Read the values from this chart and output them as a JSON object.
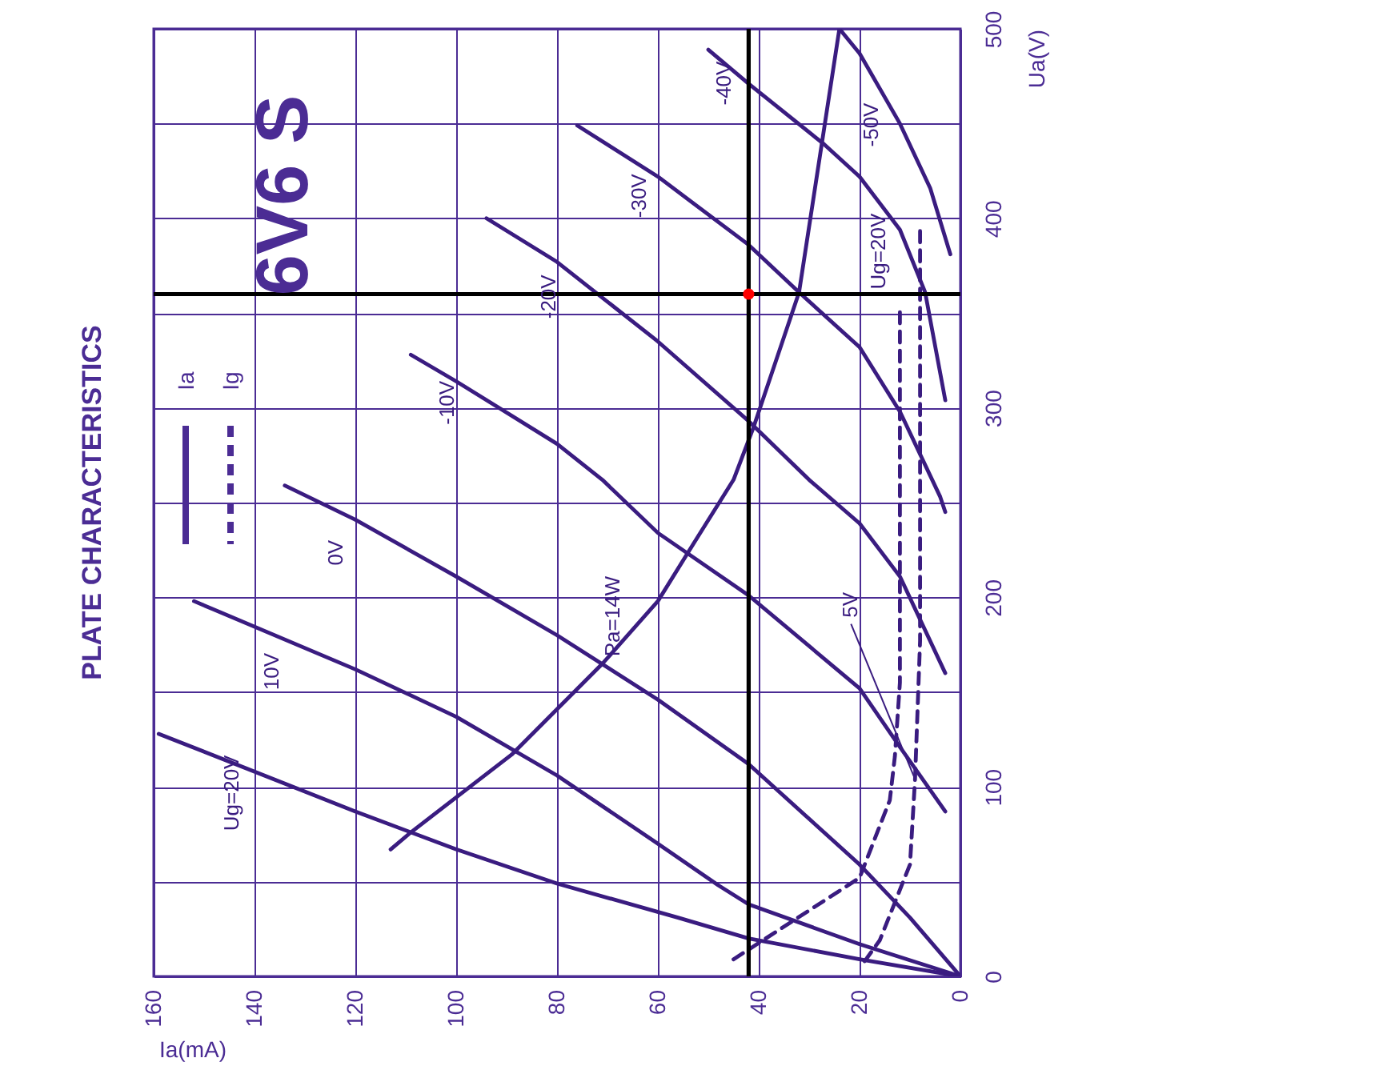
{
  "chart_data": {
    "type": "line",
    "title": "PLATE CHARACTERISTICS",
    "subtitle": "6V6 S",
    "xlabel": "Ia(mA)",
    "ylabel": "Ua(V)",
    "annotations": [
      "Ia",
      "Ig"
    ],
    "xlim": [
      160,
      0
    ],
    "ylim": [
      0,
      500
    ],
    "xticks": [
      160,
      140,
      120,
      100,
      80,
      60,
      40,
      20,
      0
    ],
    "yticks": [
      0,
      {
        "value": 50,
        "label": null
      },
      100,
      {
        "value": 150,
        "label": null
      },
      200,
      {
        "value": 250,
        "label": null
      },
      300,
      {
        "value": 350,
        "label": null
      },
      400,
      {
        "value": 450,
        "label": null
      },
      500
    ],
    "grid": true,
    "ref_lines": [
      {
        "axis": "x",
        "value": 42,
        "color": "#000000"
      },
      {
        "axis": "y",
        "value": 360,
        "color": "#000000"
      }
    ],
    "series": [
      {
        "name": "Ug=20V",
        "color": "#3a1c80",
        "x": [
          0,
          20,
          42,
          56,
          80,
          100,
          120,
          159
        ],
        "values": [
          0,
          9,
          20,
          31,
          49,
          67,
          87,
          128
        ]
      },
      {
        "name": "10V",
        "color": "#3a1c80",
        "x": [
          0,
          20,
          42,
          48,
          60,
          80,
          100,
          120,
          152
        ],
        "values": [
          0,
          17,
          38,
          48,
          70,
          106,
          137,
          162,
          198
        ]
      },
      {
        "name": "0V",
        "color": "#3a1c80",
        "x": [
          0,
          10,
          20,
          42,
          60,
          80,
          100,
          120,
          134
        ],
        "values": [
          0,
          31,
          59,
          112,
          146,
          180,
          211,
          241,
          259
        ]
      },
      {
        "name": "-10V",
        "color": "#3a1c80",
        "x": [
          3,
          12,
          20,
          42,
          60,
          71,
          80,
          100,
          109
        ],
        "values": [
          87,
          121,
          152,
          201,
          234,
          262,
          281,
          314,
          328
        ]
      },
      {
        "name": "-20V",
        "color": "#3a1c80",
        "x": [
          3,
          12,
          20,
          30,
          42,
          60,
          80,
          94
        ],
        "values": [
          160,
          211,
          239,
          262,
          293,
          335,
          377,
          400
        ]
      },
      {
        "name": "-30V",
        "color": "#3a1c80",
        "x": [
          3,
          4,
          12,
          20,
          32,
          42,
          60,
          76
        ],
        "values": [
          245,
          253,
          298,
          332,
          361,
          386,
          422,
          449
        ]
      },
      {
        "name": "-40V",
        "color": "#3a1c80",
        "x": [
          3,
          7,
          12,
          20,
          27,
          42,
          50
        ],
        "values": [
          304,
          361,
          394,
          422,
          439,
          471,
          489
        ]
      },
      {
        "name": "-50V",
        "color": "#3a1c80",
        "x": [
          2,
          6,
          12,
          20,
          24
        ],
        "values": [
          381,
          416,
          450,
          487,
          500
        ]
      },
      {
        "name": "Pa=14W",
        "color": "#3a1c80",
        "x": [
          113,
          109,
          89,
          71,
          60,
          53,
          45,
          41,
          32,
          24
        ],
        "values": [
          67,
          76,
          117,
          165,
          198,
          228,
          262,
          290,
          361,
          500
        ]
      },
      {
        "name": "Ug=20V",
        "color": "#3a1c80",
        "line_style": "dashed",
        "x": [
          45,
          20,
          14,
          13,
          12,
          12,
          12
        ],
        "values": [
          9,
          52,
          93,
          116,
          155,
          211,
          353
        ]
      },
      {
        "name": "5V",
        "color": "#3a1c80",
        "line_style": "dashed",
        "x": [
          19,
          16,
          10,
          9,
          8,
          8
        ],
        "values": [
          8,
          19,
          59,
          104,
          177,
          394
        ]
      },
      {
        "type": "scatter",
        "color": "#ff0000",
        "marker": "circle",
        "x": [
          42
        ],
        "values": [
          360
        ]
      }
    ]
  }
}
